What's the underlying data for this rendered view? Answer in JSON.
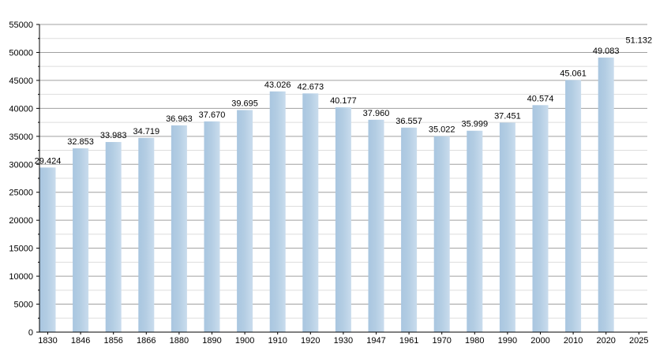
{
  "chart_data": {
    "type": "bar",
    "title": "",
    "xlabel": "",
    "ylabel": "",
    "ylim": [
      0,
      55000
    ],
    "y_ticks": [
      0,
      5000,
      10000,
      15000,
      20000,
      25000,
      30000,
      35000,
      40000,
      45000,
      50000,
      55000
    ],
    "y_tick_labels": [
      "0",
      "5000",
      "10000",
      "15000",
      "20000",
      "25000",
      "30000",
      "35000",
      "40000",
      "45000",
      "50000",
      "55000"
    ],
    "grid": true,
    "categories": [
      "1830",
      "1846",
      "1856",
      "1866",
      "1880",
      "1890",
      "1900",
      "1910",
      "1920",
      "1930",
      "1947",
      "1961",
      "1970",
      "1980",
      "1990",
      "2000",
      "2010",
      "2020",
      "2025"
    ],
    "values": [
      29424,
      32853,
      33983,
      34719,
      36963,
      37670,
      39695,
      43026,
      42673,
      40177,
      37960,
      36557,
      35022,
      35999,
      37451,
      40574,
      45061,
      49083,
      null
    ],
    "value_labels": [
      "29.424",
      "32.853",
      "33.983",
      "34.719",
      "36.963",
      "37.670",
      "39.695",
      "43.026",
      "42.673",
      "40.177",
      "37.960",
      "36.557",
      "35.022",
      "35.999",
      "37.451",
      "40.574",
      "45.061",
      "49.083",
      ""
    ],
    "annotation": {
      "text": "51.132",
      "x": "2025",
      "y": 51132
    },
    "colors": {
      "bar": "#b3cde3",
      "grid_major": "#a0a0a0",
      "grid_minor": "#dddddd",
      "axis": "#000000"
    }
  }
}
